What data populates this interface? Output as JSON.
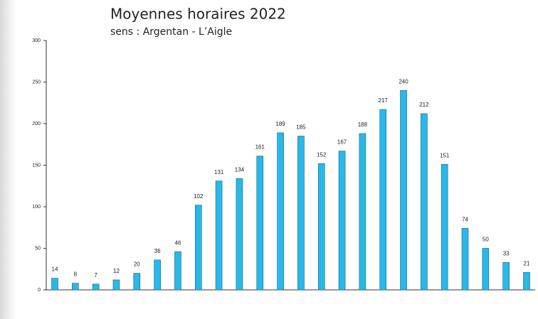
{
  "chart_data": {
    "type": "bar",
    "title": "Moyennes horaires 2022",
    "subtitle": "sens : Argentan - L’Aigle",
    "categories": [
      null,
      null,
      null,
      null,
      null,
      null,
      null,
      null,
      null,
      null,
      null,
      null,
      null,
      null,
      null,
      null,
      null,
      null,
      null,
      null,
      null,
      null,
      null,
      null
    ],
    "values": [
      14,
      8,
      7,
      12,
      20,
      36,
      46,
      102,
      131,
      134,
      161,
      189,
      185,
      152,
      167,
      188,
      217,
      240,
      212,
      151,
      74,
      50,
      33,
      21
    ],
    "color": "#29b8ea",
    "ylim": [
      0,
      300
    ],
    "yticks": [
      0,
      50,
      100,
      150,
      200,
      250,
      300
    ]
  }
}
